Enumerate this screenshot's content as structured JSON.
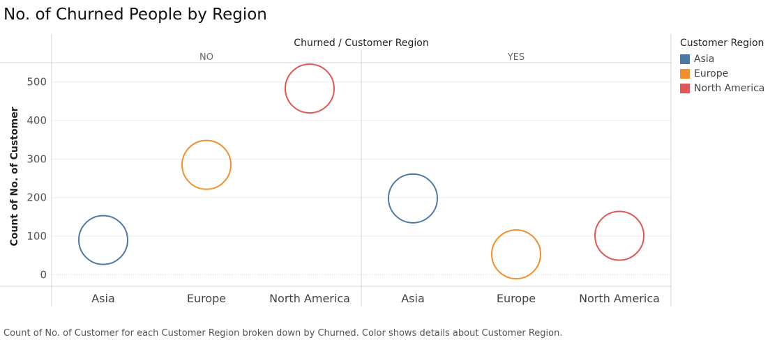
{
  "title": "No. of Churned People by Region",
  "caption": "Count of No. of Customer for each Customer Region broken down by Churned.  Color shows details about Customer Region.",
  "colors": {
    "Asia": "#4e79a7",
    "Europe": "#f28e2b",
    "North America": "#e15759"
  },
  "legend": {
    "title": "Customer Region",
    "items": [
      {
        "label": "Asia",
        "color": "#4e79a7"
      },
      {
        "label": "Europe",
        "color": "#f28e2b"
      },
      {
        "label": "North America",
        "color": "#e15759"
      }
    ]
  },
  "chart_data": {
    "type": "scatter",
    "column_header": "Churned  /  Customer Region",
    "ylabel": "Count of No. of Customer",
    "ylim": [
      -30,
      550
    ],
    "yticks": [
      0,
      100,
      200,
      300,
      400,
      500
    ],
    "marker": "open-circle",
    "grid": true,
    "legend_position": "right",
    "panels": [
      {
        "label": "NO",
        "points": [
          {
            "category": "Asia",
            "value": 90
          },
          {
            "category": "Europe",
            "value": 285
          },
          {
            "category": "North America",
            "value": 483
          }
        ]
      },
      {
        "label": "YES",
        "points": [
          {
            "category": "Asia",
            "value": 198
          },
          {
            "category": "Europe",
            "value": 53
          },
          {
            "category": "North America",
            "value": 101
          }
        ]
      }
    ]
  }
}
